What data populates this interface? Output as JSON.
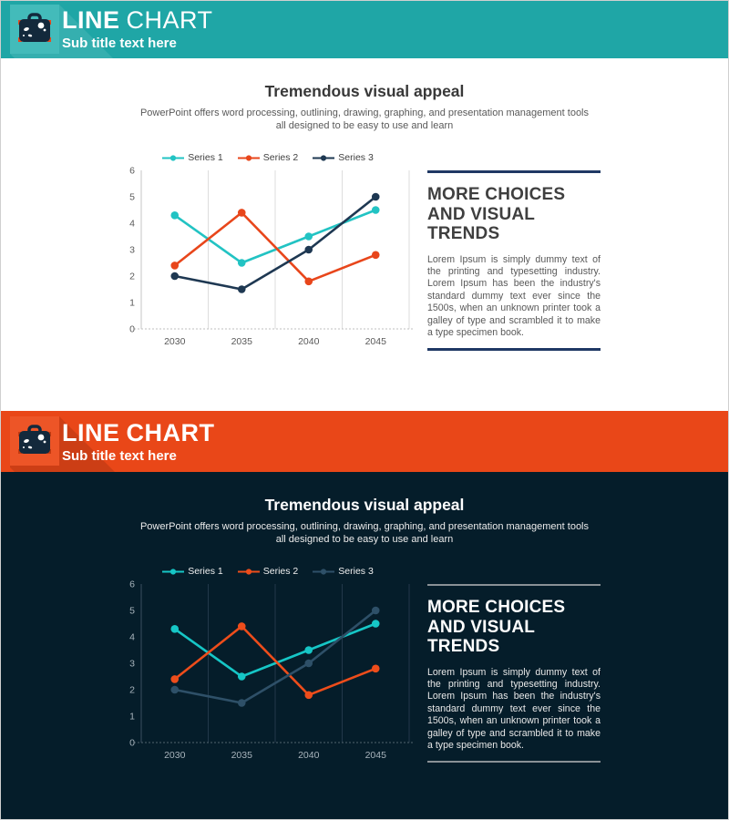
{
  "header": {
    "word1": "LINE",
    "word2": "CHART",
    "subtitle": "Sub title text here"
  },
  "content": {
    "title": "Tremendous visual appeal",
    "subtitle_line1": "PowerPoint offers word processing, outlining, drawing, graphing, and presentation management tools",
    "subtitle_line2": "all designed to be easy to use and learn",
    "panel_heading": "MORE CHOICES AND VISUAL TRENDS",
    "panel_body": "Lorem Ipsum is simply dummy text of the printing and typesetting industry. Lorem Ipsum has been the industry's standard dummy text ever since the 1500s, when an unknown printer took a galley of type and scrambled it to make a type specimen book."
  },
  "chart_data": {
    "type": "line",
    "categories": [
      "2030",
      "2035",
      "2040",
      "2045"
    ],
    "series": [
      {
        "name": "Series 1",
        "values": [
          4.3,
          2.5,
          3.5,
          4.5
        ]
      },
      {
        "name": "Series 2",
        "values": [
          2.4,
          4.4,
          1.8,
          2.8
        ]
      },
      {
        "name": "Series 3",
        "values": [
          2.0,
          1.5,
          3.0,
          5.0
        ]
      }
    ],
    "ylim": [
      0,
      6
    ],
    "yticks": [
      0,
      1,
      2,
      3,
      4,
      5,
      6
    ],
    "legend_position": "top",
    "grid": "vertical gridlines between categories, dashed zero baseline",
    "marker": "circle"
  },
  "themes": {
    "light": {
      "band_color": "#1FA6A6",
      "tile_color": "#43BBBA",
      "background": "#ffffff",
      "series_colors": [
        "#22C3C3",
        "#E8461B",
        "#1E3852"
      ],
      "grid_color": "#DDDDDD",
      "axis_color": "#C6C6C6",
      "baseline_color": "#BFBFBF",
      "tick_label_color": "#595959",
      "rule_color": "#1F3864"
    },
    "dark": {
      "band_color": "#E94718",
      "tile_color": "#ED5527",
      "background": "#051D2A",
      "series_colors": [
        "#16C6C6",
        "#EE4D1B",
        "#2E5068"
      ],
      "grid_color": "#22384A",
      "axis_color": "#3A4F60",
      "baseline_color": "#51646F",
      "tick_label_color": "#A8B4BC",
      "rule_color": "#8A9196"
    }
  },
  "icon": {
    "name": "briefcase",
    "body_color": "#13293C",
    "accent_color": "#E8481C",
    "sticker_color": "#FFFFFF"
  }
}
